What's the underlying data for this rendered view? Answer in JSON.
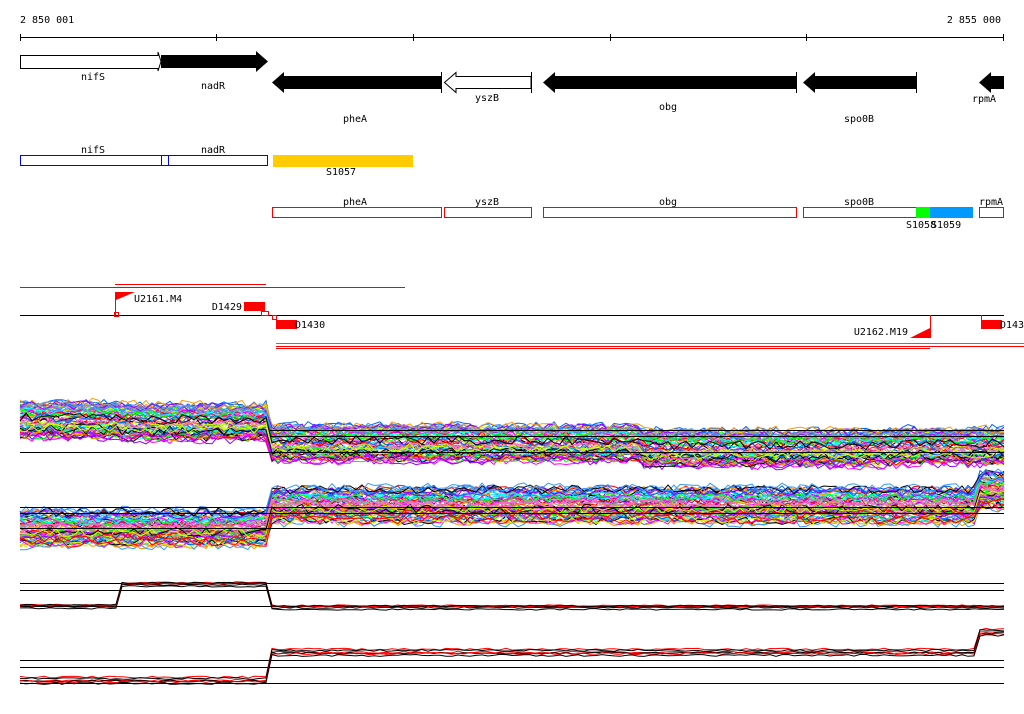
{
  "ruler": {
    "start_label": "2 850 001",
    "end_label": "2 855 000"
  },
  "genes": [
    {
      "name": "nifS",
      "strand": "+",
      "fill": "open"
    },
    {
      "name": "nadR",
      "strand": "+",
      "fill": "solid"
    },
    {
      "name": "pheA",
      "strand": "-",
      "fill": "solid"
    },
    {
      "name": "yszB",
      "strand": "-",
      "fill": "open"
    },
    {
      "name": "obg",
      "strand": "-",
      "fill": "solid"
    },
    {
      "name": "spo0B",
      "strand": "-",
      "fill": "solid"
    },
    {
      "name": "rpmA",
      "strand": "-",
      "fill": "solid"
    }
  ],
  "operon_track": {
    "nifS": "nifS",
    "nadR": "nadR",
    "s1057": "S1057"
  },
  "feature_track": {
    "pheA": "pheA",
    "yszB": "yszB",
    "obg": "obg",
    "spo0B": "spo0B",
    "rpmA": "rpmA",
    "s1058": "S1058",
    "s1059": "S1059"
  },
  "transcripts": {
    "u2161": "U2161.M4",
    "d1429": "D1429",
    "d1430": "D1430",
    "u2162": "U2162.M19",
    "d143": "D143"
  },
  "colors": {
    "gene": "#000000",
    "operon_box": "#0000ff",
    "feature_box": "#ff0000",
    "s1057": "#ffcc00",
    "s1058": "#00ff00",
    "s1059": "#0099ff",
    "transcript": "#ff0000",
    "green_line": "#00cc00"
  }
}
